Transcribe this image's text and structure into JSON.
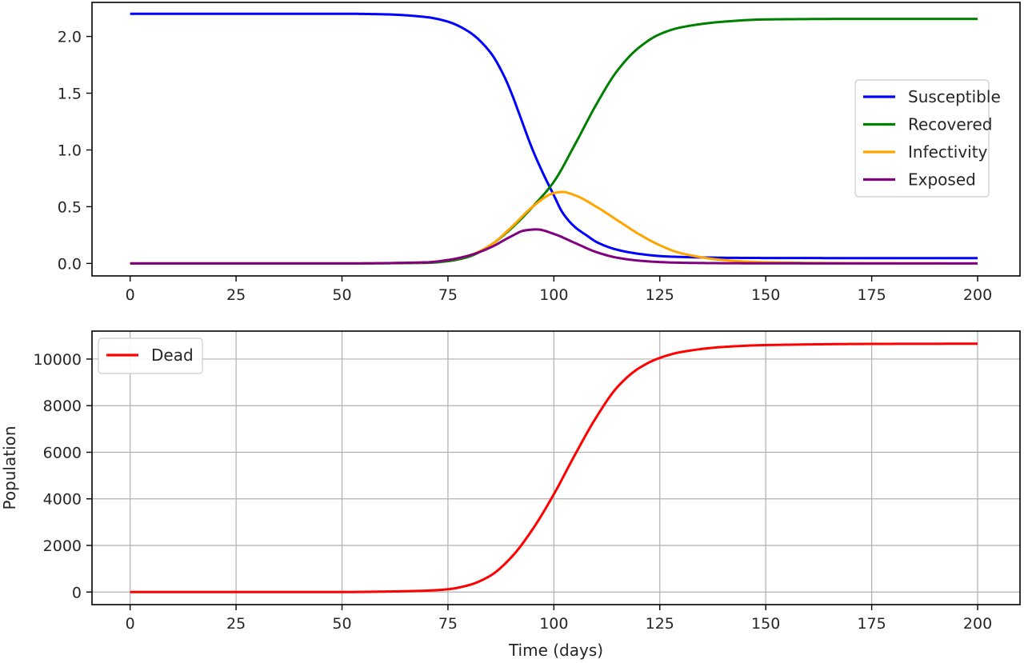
{
  "chart_data": [
    {
      "type": "line",
      "title": "",
      "xlabel": "",
      "ylabel": "",
      "xlim": [
        -9,
        210
      ],
      "ylim": [
        -0.11,
        2.3
      ],
      "grid": false,
      "legend_position": "right",
      "x_ticks": [
        0,
        25,
        50,
        75,
        100,
        125,
        150,
        175,
        200
      ],
      "y_ticks": [
        0.0,
        0.5,
        1.0,
        1.5,
        2.0
      ],
      "y_tick_labels": [
        "0.0",
        "0.5",
        "1.0",
        "1.5",
        "2.0"
      ],
      "series": [
        {
          "name": "Susceptible",
          "color": "#0000ff",
          "x": [
            0,
            25,
            50,
            60,
            70,
            75,
            80,
            85,
            88,
            90,
            92,
            95,
            98,
            100,
            102,
            105,
            108,
            110,
            115,
            120,
            125,
            130,
            140,
            150,
            175,
            200
          ],
          "y": [
            2.2,
            2.2,
            2.2,
            2.195,
            2.17,
            2.13,
            2.04,
            1.86,
            1.67,
            1.5,
            1.3,
            1.0,
            0.75,
            0.6,
            0.45,
            0.32,
            0.24,
            0.19,
            0.12,
            0.085,
            0.065,
            0.057,
            0.05,
            0.048,
            0.047,
            0.047
          ]
        },
        {
          "name": "Recovered",
          "color": "#008000",
          "x": [
            0,
            50,
            70,
            75,
            80,
            85,
            90,
            95,
            100,
            105,
            110,
            115,
            120,
            125,
            130,
            140,
            150,
            175,
            200
          ],
          "y": [
            0.0,
            0.0,
            0.005,
            0.02,
            0.06,
            0.16,
            0.31,
            0.5,
            0.72,
            1.05,
            1.4,
            1.7,
            1.9,
            2.02,
            2.08,
            2.13,
            2.15,
            2.155,
            2.155
          ]
        },
        {
          "name": "Infectivity",
          "color": "#ffa500",
          "x": [
            0,
            50,
            70,
            75,
            80,
            85,
            90,
            95,
            100,
            102,
            105,
            110,
            115,
            120,
            125,
            130,
            140,
            150,
            175,
            200
          ],
          "y": [
            0.0,
            0.0,
            0.01,
            0.03,
            0.07,
            0.16,
            0.32,
            0.5,
            0.62,
            0.63,
            0.6,
            0.5,
            0.38,
            0.26,
            0.16,
            0.09,
            0.03,
            0.01,
            0.002,
            0.0
          ]
        },
        {
          "name": "Exposed",
          "color": "#800080",
          "x": [
            0,
            50,
            70,
            75,
            80,
            85,
            90,
            93,
            96,
            100,
            105,
            110,
            115,
            120,
            125,
            130,
            140,
            150,
            175,
            200
          ],
          "y": [
            0.0,
            0.0,
            0.01,
            0.03,
            0.07,
            0.14,
            0.24,
            0.29,
            0.3,
            0.26,
            0.18,
            0.1,
            0.05,
            0.025,
            0.012,
            0.006,
            0.002,
            0.001,
            0.0,
            0.0
          ]
        }
      ]
    },
    {
      "type": "line",
      "title": "",
      "xlabel": "Time (days)",
      "ylabel": "Population",
      "xlim": [
        -9,
        210
      ],
      "ylim": [
        -540,
        11200
      ],
      "grid": true,
      "legend_position": "top-left",
      "x_ticks": [
        0,
        25,
        50,
        75,
        100,
        125,
        150,
        175,
        200
      ],
      "y_ticks": [
        0,
        2000,
        4000,
        6000,
        8000,
        10000
      ],
      "y_tick_labels": [
        "0",
        "2000",
        "4000",
        "6000",
        "8000",
        "10000"
      ],
      "series": [
        {
          "name": "Dead",
          "color": "#ff0000",
          "x": [
            0,
            25,
            50,
            60,
            70,
            75,
            80,
            85,
            90,
            95,
            100,
            105,
            110,
            115,
            120,
            125,
            130,
            140,
            150,
            175,
            200
          ],
          "y": [
            0,
            0,
            0,
            20,
            60,
            120,
            300,
            700,
            1500,
            2700,
            4200,
            5900,
            7500,
            8800,
            9600,
            10050,
            10300,
            10520,
            10600,
            10650,
            10660
          ]
        }
      ]
    }
  ]
}
